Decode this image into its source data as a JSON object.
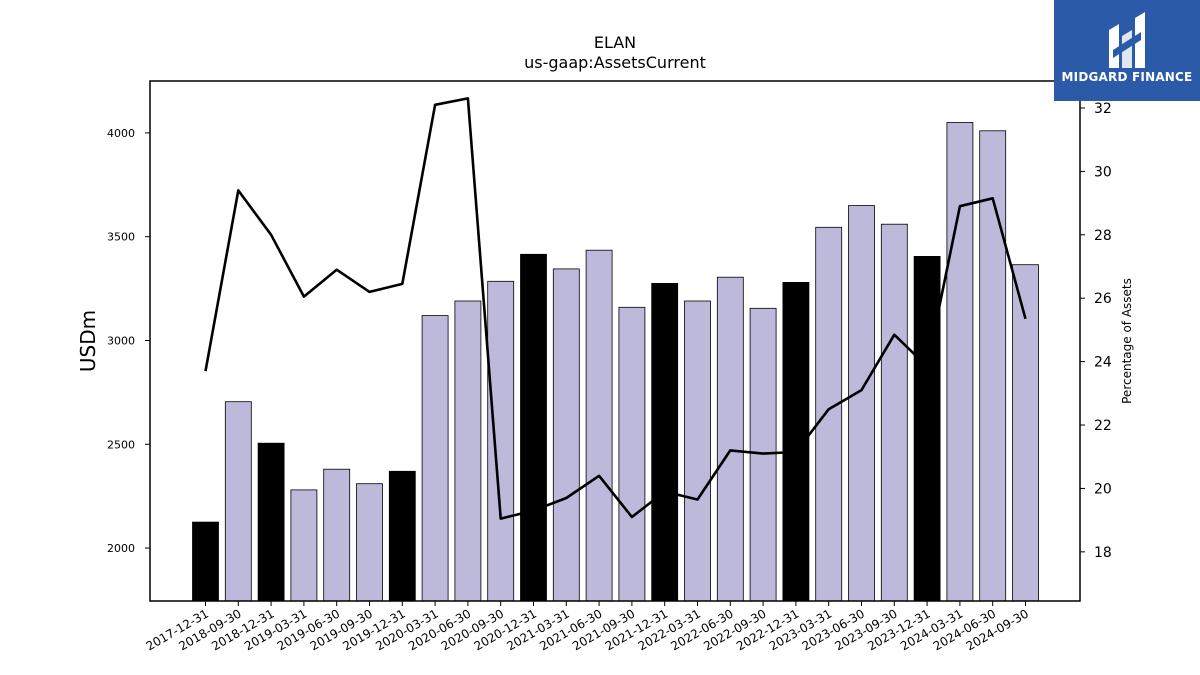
{
  "header": {
    "title": "ELAN",
    "subtitle": "us-gaap:AssetsCurrent"
  },
  "logo": {
    "text": "MIDGARD FINANCE",
    "icon": "midgard-logo-icon",
    "background": "#2a5aa8"
  },
  "colors": {
    "bar_default": "#bcb9db",
    "bar_highlight": "#000000",
    "line": "#000000"
  },
  "chart_data": {
    "type": "bar",
    "title": "ELAN",
    "subtitle": "us-gaap:AssetsCurrent",
    "ylabel": "USDm",
    "y2label": "Percentage of Assets",
    "ylim": [
      1745,
      4250
    ],
    "y2lim": [
      16.45,
      32.85
    ],
    "yticks": [
      2000,
      2500,
      3000,
      3500,
      4000
    ],
    "y2ticks": [
      18,
      20,
      22,
      24,
      26,
      28,
      30,
      32
    ],
    "grid": false,
    "categories": [
      "2017-12-31",
      "2018-09-30",
      "2018-12-31",
      "2019-03-31",
      "2019-06-30",
      "2019-09-30",
      "2019-12-31",
      "2020-03-31",
      "2020-06-30",
      "2020-09-30",
      "2020-12-31",
      "2021-03-31",
      "2021-06-30",
      "2021-09-30",
      "2021-12-31",
      "2022-03-31",
      "2022-06-30",
      "2022-09-30",
      "2022-12-31",
      "2023-03-31",
      "2023-06-30",
      "2023-09-30",
      "2023-12-31",
      "2024-03-31",
      "2024-06-30",
      "2024-09-30"
    ],
    "series": [
      {
        "type": "bar",
        "axis": "left",
        "values": [
          2125,
          2705,
          2505,
          2280,
          2380,
          2310,
          2370,
          3120,
          3190,
          3285,
          3415,
          3345,
          3435,
          3160,
          3275,
          3190,
          3305,
          3155,
          3280,
          3545,
          3650,
          3560,
          3405,
          4050,
          4010,
          3365
        ],
        "highlight": [
          true,
          false,
          true,
          false,
          false,
          false,
          true,
          false,
          false,
          false,
          true,
          false,
          false,
          false,
          true,
          false,
          false,
          false,
          true,
          false,
          false,
          false,
          true,
          false,
          false,
          false
        ]
      },
      {
        "type": "line",
        "axis": "right",
        "values": [
          23.7,
          29.4,
          28.0,
          26.05,
          26.9,
          26.2,
          26.45,
          32.1,
          32.3,
          19.05,
          19.3,
          19.7,
          20.4,
          19.1,
          19.9,
          19.65,
          21.2,
          21.1,
          21.15,
          22.5,
          23.1,
          24.85,
          23.85,
          28.9,
          29.15,
          25.35
        ]
      }
    ]
  }
}
